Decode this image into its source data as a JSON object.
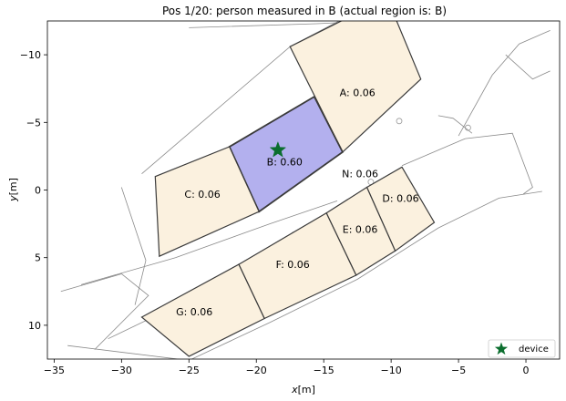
{
  "chart_data": {
    "type": "scatter",
    "title": "Pos 1/20: person measured in B (actual region is: B)",
    "xlabel": "x[m]",
    "xlabel_main": "x",
    "xlabel_unit": "[m]",
    "ylabel": "y[m]",
    "ylabel_main": "y",
    "ylabel_unit": "[m]",
    "xlim": [
      -35.5,
      2.5
    ],
    "ylim": [
      12.5,
      -12.5
    ],
    "y_inverted": true,
    "x_ticks": [
      -35,
      -30,
      -25,
      -20,
      -15,
      -10,
      -5,
      0
    ],
    "y_ticks": [
      -10,
      -5,
      0,
      5,
      10
    ],
    "x_tick_labels": [
      "−35",
      "−30",
      "−25",
      "−20",
      "−15",
      "−10",
      "−5",
      "0"
    ],
    "y_tick_labels": [
      "−10",
      "−5",
      "0",
      "5",
      "10"
    ],
    "grid": false,
    "legend_position": "bottom-right",
    "regions": [
      {
        "id": "A",
        "label": "A: 0.06",
        "value": 0.06,
        "highlight": false,
        "polygon": [
          [
            -17.5,
            -10.6
          ],
          [
            -10.3,
            -14.2
          ],
          [
            -7.8,
            -8.2
          ],
          [
            -13.6,
            -2.8
          ]
        ],
        "label_pos": [
          -12.5,
          -7.2
        ]
      },
      {
        "id": "B",
        "label": "B: 0.60",
        "value": 0.6,
        "highlight": true,
        "polygon": [
          [
            -22.0,
            -3.2
          ],
          [
            -15.7,
            -6.9
          ],
          [
            -13.6,
            -2.8
          ],
          [
            -19.8,
            1.6
          ]
        ],
        "label_pos": [
          -17.9,
          -2.1
        ]
      },
      {
        "id": "C",
        "label": "C: 0.06",
        "value": 0.06,
        "highlight": false,
        "polygon": [
          [
            -27.5,
            -1.0
          ],
          [
            -22.0,
            -3.2
          ],
          [
            -19.8,
            1.6
          ],
          [
            -27.2,
            4.9
          ]
        ],
        "label_pos": [
          -24.0,
          0.3
        ]
      },
      {
        "id": "D",
        "label": "D: 0.06",
        "value": 0.06,
        "highlight": false,
        "polygon": [
          [
            -11.8,
            -0.2
          ],
          [
            -9.2,
            -1.7
          ],
          [
            -6.8,
            2.4
          ],
          [
            -9.7,
            4.5
          ]
        ],
        "label_pos": [
          -9.3,
          0.6
        ]
      },
      {
        "id": "E",
        "label": "E: 0.06",
        "value": 0.06,
        "highlight": false,
        "polygon": [
          [
            -14.8,
            1.7
          ],
          [
            -11.8,
            -0.2
          ],
          [
            -9.7,
            4.5
          ],
          [
            -12.6,
            6.3
          ]
        ],
        "label_pos": [
          -12.3,
          2.9
        ]
      },
      {
        "id": "F",
        "label": "F: 0.06",
        "value": 0.06,
        "highlight": false,
        "polygon": [
          [
            -21.3,
            5.5
          ],
          [
            -14.8,
            1.7
          ],
          [
            -12.6,
            6.3
          ],
          [
            -19.4,
            9.5
          ]
        ],
        "label_pos": [
          -17.3,
          5.5
        ]
      },
      {
        "id": "G",
        "label": "G: 0.06",
        "value": 0.06,
        "highlight": false,
        "polygon": [
          [
            -28.5,
            9.4
          ],
          [
            -21.3,
            5.5
          ],
          [
            -19.4,
            9.5
          ],
          [
            -25.0,
            12.3
          ]
        ],
        "label_pos": [
          -24.6,
          9.0
        ]
      }
    ],
    "region_colors": {
      "default_fill": "#fbf1df",
      "highlight_fill": "#b3b0ee",
      "edge": "#3a3a3a"
    },
    "text_labels": [
      {
        "id": "N",
        "label": "N: 0.06",
        "value": 0.06,
        "label_pos": [
          -12.3,
          -1.2
        ]
      }
    ],
    "series": [
      {
        "name": "device",
        "marker": "star",
        "color": "#0b6e2e",
        "x": [
          -18.4
        ],
        "y": [
          -2.95
        ]
      }
    ]
  }
}
